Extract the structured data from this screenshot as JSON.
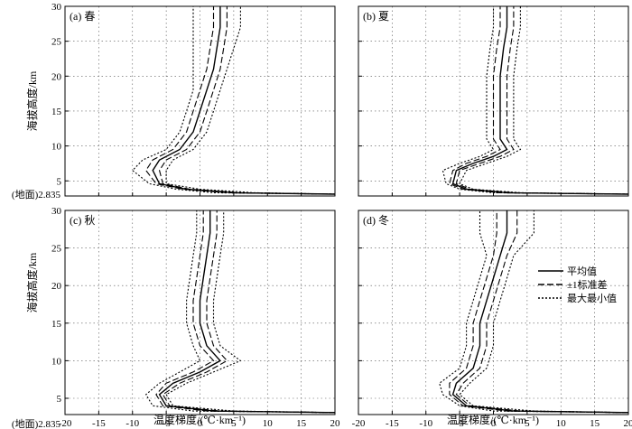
{
  "figure": {
    "xlabel": "温度梯度/(℃·km⁻¹)",
    "ylabel": "海拔高度/km",
    "ground_label": "(地面)2.835",
    "legend": [
      "平均值",
      "±1标准差",
      "最大最小值"
    ]
  },
  "chart_data": [
    {
      "type": "line",
      "panel": "(a) 春",
      "xlim": [
        -20,
        20
      ],
      "ylim": [
        2.835,
        30
      ],
      "xticks": [
        -20,
        -15,
        -10,
        -5,
        0,
        5,
        10,
        15,
        20
      ],
      "yticks": [
        5,
        10,
        15,
        20,
        25,
        30
      ],
      "grid": true,
      "series": [
        {
          "name": "平均值",
          "style": "solid",
          "x": [
            20,
            5,
            -2,
            -6,
            -7,
            -6,
            -3,
            -1,
            0,
            1,
            2,
            2.5,
            3,
            3
          ],
          "y": [
            3.1,
            3.3,
            3.8,
            4.6,
            6.5,
            8,
            9.5,
            12,
            15,
            18,
            21,
            24,
            27,
            30
          ]
        },
        {
          "name": "±1标准差",
          "style": "dashed",
          "x": [
            20,
            6,
            -1.5,
            -5.5,
            -6,
            -5,
            -2,
            0,
            1,
            2,
            3,
            3.5,
            4,
            4
          ],
          "y": [
            3.1,
            3.3,
            3.8,
            4.6,
            6.5,
            8,
            9.5,
            12,
            15,
            18,
            21,
            24,
            27,
            30
          ]
        },
        {
          "name": "±1标准差",
          "style": "dashed",
          "x": [
            20,
            4,
            -2.5,
            -6.5,
            -8,
            -7,
            -4,
            -2,
            -1,
            0,
            1,
            1.5,
            2,
            2
          ],
          "y": [
            3.1,
            3.3,
            3.8,
            4.6,
            6.5,
            8,
            9.5,
            12,
            15,
            18,
            21,
            24,
            27,
            30
          ]
        },
        {
          "name": "最大最小值",
          "style": "dotted",
          "x": [
            20,
            8,
            0,
            -5,
            -5,
            -4,
            -1,
            1,
            2,
            3,
            4,
            5,
            6,
            6
          ],
          "y": [
            3.1,
            3.3,
            3.8,
            4.6,
            6.5,
            8,
            9.5,
            12,
            15,
            18,
            21,
            24,
            27,
            30
          ]
        },
        {
          "name": "最大最小值",
          "style": "dotted",
          "x": [
            20,
            2,
            -3.5,
            -7.5,
            -10,
            -8.5,
            -5,
            -3,
            -2,
            -1,
            -1,
            -1,
            -1,
            -1
          ],
          "y": [
            3.1,
            3.3,
            3.8,
            4.6,
            6.5,
            8,
            9.5,
            12,
            15,
            18,
            21,
            24,
            27,
            30
          ]
        }
      ]
    },
    {
      "type": "line",
      "panel": "(b) 夏",
      "xlim": [
        -20,
        20
      ],
      "ylim": [
        2.835,
        30
      ],
      "xticks": [
        -20,
        -15,
        -10,
        -5,
        0,
        5,
        10,
        15,
        20
      ],
      "yticks": [
        5,
        10,
        15,
        20,
        25,
        30
      ],
      "grid": true,
      "series": [
        {
          "name": "平均值",
          "style": "solid",
          "x": [
            20,
            2,
            -4,
            -6,
            -5.5,
            -3,
            0,
            2,
            1,
            1,
            1,
            1.5,
            2,
            2
          ],
          "y": [
            3.1,
            3.3,
            3.8,
            4.6,
            6.5,
            7.5,
            8.5,
            9.5,
            11,
            15,
            20,
            24,
            27,
            30
          ]
        },
        {
          "name": "±1标准差",
          "style": "dashed",
          "x": [
            20,
            3,
            -3.5,
            -5.5,
            -5,
            -2,
            1,
            3,
            2,
            2,
            2,
            2.5,
            3,
            3
          ],
          "y": [
            3.1,
            3.3,
            3.8,
            4.6,
            6.5,
            7.5,
            8.5,
            9.5,
            11,
            15,
            20,
            24,
            27,
            30
          ]
        },
        {
          "name": "±1标准差",
          "style": "dashed",
          "x": [
            20,
            1,
            -4.5,
            -6.5,
            -6,
            -4,
            -1,
            1,
            0,
            0,
            0,
            0.5,
            1,
            1
          ],
          "y": [
            3.1,
            3.3,
            3.8,
            4.6,
            6.5,
            7.5,
            8.5,
            9.5,
            11,
            15,
            20,
            24,
            27,
            30
          ]
        },
        {
          "name": "最大最小值",
          "style": "dotted",
          "x": [
            20,
            4,
            -3,
            -5,
            -4,
            -1,
            2,
            4,
            3,
            3,
            3,
            3.5,
            4,
            4
          ],
          "y": [
            3.1,
            3.3,
            3.8,
            4.6,
            6.5,
            7.5,
            8.5,
            9.5,
            11,
            15,
            20,
            24,
            27,
            30
          ]
        },
        {
          "name": "最大最小值",
          "style": "dotted",
          "x": [
            20,
            0,
            -5,
            -7,
            -7.5,
            -5,
            -2,
            0,
            -1,
            -1,
            -1,
            -0.5,
            0,
            0
          ],
          "y": [
            3.1,
            3.3,
            3.8,
            4.6,
            6.5,
            7.5,
            8.5,
            9.5,
            11,
            15,
            20,
            24,
            27,
            30
          ]
        }
      ]
    },
    {
      "type": "line",
      "panel": "(c) 秋",
      "xlim": [
        -20,
        20
      ],
      "ylim": [
        2.835,
        30
      ],
      "xticks": [
        -20,
        -15,
        -10,
        -5,
        0,
        5,
        10,
        15,
        20
      ],
      "yticks": [
        5,
        10,
        15,
        20,
        25,
        30
      ],
      "grid": true,
      "series": [
        {
          "name": "平均值",
          "style": "solid",
          "x": [
            20,
            2,
            -5,
            -6,
            -4,
            0,
            3,
            1,
            0,
            0,
            0.5,
            1,
            1.5,
            1.5
          ],
          "y": [
            3.1,
            3.3,
            4,
            5.5,
            7,
            8.5,
            10,
            12,
            15,
            18,
            21,
            24,
            27,
            30
          ]
        },
        {
          "name": "±1标准差",
          "style": "dashed",
          "x": [
            20,
            3,
            -4.5,
            -5.5,
            -3,
            1,
            4,
            2,
            1,
            1,
            1.5,
            2,
            2.5,
            2.5
          ],
          "y": [
            3.1,
            3.3,
            4,
            5.5,
            7,
            8.5,
            10,
            12,
            15,
            18,
            21,
            24,
            27,
            30
          ]
        },
        {
          "name": "±1标准差",
          "style": "dashed",
          "x": [
            20,
            1,
            -5.5,
            -6.5,
            -5,
            -1,
            2,
            0,
            -1,
            -1,
            -0.5,
            0,
            0.5,
            0.5
          ],
          "y": [
            3.1,
            3.3,
            4,
            5.5,
            7,
            8.5,
            10,
            12,
            15,
            18,
            21,
            24,
            27,
            30
          ]
        },
        {
          "name": "最大最小值",
          "style": "dotted",
          "x": [
            20,
            5,
            -4,
            -5,
            -2,
            2,
            6,
            3,
            2,
            2,
            2.5,
            3,
            3.5,
            3.5
          ],
          "y": [
            3.1,
            3.3,
            4,
            5.5,
            7,
            8.5,
            10,
            12,
            15,
            18,
            21,
            24,
            27,
            30
          ]
        },
        {
          "name": "最大最小值",
          "style": "dotted",
          "x": [
            20,
            -1,
            -7,
            -8,
            -6,
            -3,
            0,
            -1,
            -2,
            -2,
            -1.5,
            -1,
            -0.5,
            -0.5
          ],
          "y": [
            3.1,
            3.3,
            4,
            5.5,
            7,
            8.5,
            10,
            12,
            15,
            18,
            21,
            24,
            27,
            30
          ]
        }
      ]
    },
    {
      "type": "line",
      "panel": "(d) 冬",
      "xlim": [
        -20,
        20
      ],
      "ylim": [
        2.835,
        30
      ],
      "xticks": [
        -20,
        -15,
        -10,
        -5,
        0,
        5,
        10,
        15,
        20
      ],
      "yticks": [
        5,
        10,
        15,
        20,
        25,
        30
      ],
      "grid": true,
      "series": [
        {
          "name": "平均值",
          "style": "solid",
          "x": [
            20,
            3,
            -4,
            -6,
            -5.5,
            -3,
            -2,
            -2,
            -1,
            0,
            1,
            2,
            2
          ],
          "y": [
            3.1,
            3.3,
            4,
            5.5,
            7,
            9,
            12,
            15,
            18,
            21,
            24,
            27,
            30
          ]
        },
        {
          "name": "±1标准差",
          "style": "dashed",
          "x": [
            20,
            4,
            -3.5,
            -5.5,
            -4.5,
            -2,
            -1,
            -1,
            0,
            1,
            2,
            3.5,
            3.5
          ],
          "y": [
            3.1,
            3.3,
            4,
            5.5,
            7,
            9,
            12,
            15,
            18,
            21,
            24,
            27,
            30
          ]
        },
        {
          "name": "±1标准差",
          "style": "dashed",
          "x": [
            20,
            2,
            -4.5,
            -6.5,
            -6.5,
            -4,
            -3,
            -3,
            -2,
            -1,
            0,
            0.5,
            0.5
          ],
          "y": [
            3.1,
            3.3,
            4,
            5.5,
            7,
            9,
            12,
            15,
            18,
            21,
            24,
            27,
            30
          ]
        },
        {
          "name": "最大最小值",
          "style": "dotted",
          "x": [
            20,
            6,
            -3,
            -5,
            -3.5,
            -1,
            0,
            0,
            1,
            2,
            3,
            6,
            6
          ],
          "y": [
            3.1,
            3.3,
            4,
            5.5,
            7,
            9,
            12,
            15,
            18,
            21,
            24,
            27,
            30
          ]
        },
        {
          "name": "最大最小值",
          "style": "dotted",
          "x": [
            20,
            0,
            -5,
            -7.5,
            -8,
            -5,
            -4,
            -4,
            -3,
            -2,
            -1,
            -2,
            -2
          ],
          "y": [
            3.1,
            3.3,
            4,
            5.5,
            7,
            9,
            12,
            15,
            18,
            21,
            24,
            27,
            30
          ]
        }
      ]
    }
  ]
}
